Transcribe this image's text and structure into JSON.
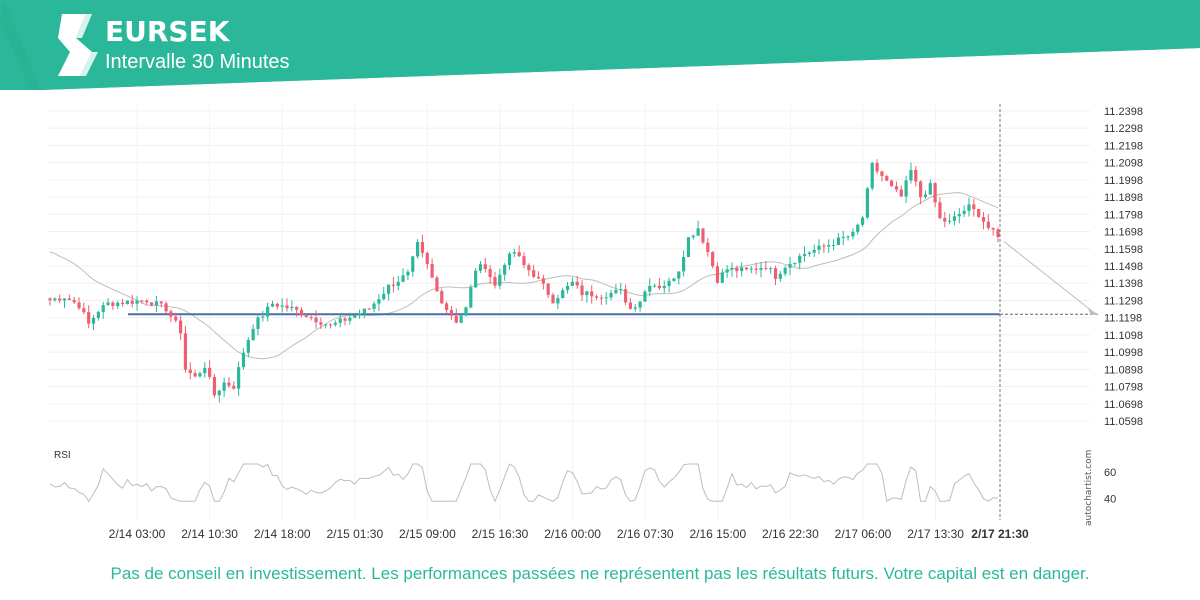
{
  "header": {
    "symbol": "EURSEK",
    "interval": "Intervalle 30 Minutes",
    "logo_icon": "autochartist-logo-icon"
  },
  "colors": {
    "brand": "#2bb89a",
    "bull": "#2bb89a",
    "bear": "#ef5f72",
    "support": "#4a6fa5",
    "ma": "#bdbdbd",
    "rsi": "#bdbdbd"
  },
  "branding": {
    "vertical_text": "autochartist.com"
  },
  "disclaimer": "Pas de conseil en investissement. Les performances passées ne représentent pas les résultats futurs. Votre capital est en danger.",
  "chart_data": {
    "type": "candlestick",
    "title": "EURSEK",
    "subtitle": "Intervalle 30 Minutes",
    "y_ticks": [
      "11.2398",
      "11.2298",
      "11.2198",
      "11.2098",
      "11.1998",
      "11.1898",
      "11.1798",
      "11.1698",
      "11.1598",
      "11.1498",
      "11.1398",
      "11.1298",
      "11.1198",
      "11.1098",
      "11.0998",
      "11.0898",
      "11.0798",
      "11.0698",
      "11.0598"
    ],
    "ylim": [
      11.0558,
      11.2438
    ],
    "x_ticks": [
      "2/14 03:00",
      "2/14 10:30",
      "2/14 18:00",
      "2/15 01:30",
      "2/15 09:00",
      "2/15 16:30",
      "2/16 00:00",
      "2/16 07:30",
      "2/16 15:00",
      "2/16 22:30",
      "2/17 06:00",
      "2/17 13:30"
    ],
    "x_current_label": "2/17 21:30",
    "support_level": 11.1218,
    "projection": {
      "from": 11.164,
      "to": 11.1218
    },
    "price_waypoints": [
      [
        0,
        11.13
      ],
      [
        3,
        11.132
      ],
      [
        6,
        11.127
      ],
      [
        8,
        11.116
      ],
      [
        10,
        11.124
      ],
      [
        12,
        11.128
      ],
      [
        16,
        11.129
      ],
      [
        20,
        11.13
      ],
      [
        24,
        11.125
      ],
      [
        27,
        11.112
      ],
      [
        28,
        11.09
      ],
      [
        30,
        11.085
      ],
      [
        32,
        11.092
      ],
      [
        34,
        11.075
      ],
      [
        36,
        11.082
      ],
      [
        38,
        11.08
      ],
      [
        40,
        11.1
      ],
      [
        42,
        11.115
      ],
      [
        46,
        11.128
      ],
      [
        50,
        11.125
      ],
      [
        54,
        11.12
      ],
      [
        58,
        11.115
      ],
      [
        62,
        11.12
      ],
      [
        66,
        11.125
      ],
      [
        70,
        11.138
      ],
      [
        74,
        11.145
      ],
      [
        76,
        11.162
      ],
      [
        78,
        11.15
      ],
      [
        80,
        11.135
      ],
      [
        82,
        11.125
      ],
      [
        84,
        11.118
      ],
      [
        86,
        11.125
      ],
      [
        88,
        11.148
      ],
      [
        90,
        11.15
      ],
      [
        92,
        11.138
      ],
      [
        94,
        11.152
      ],
      [
        96,
        11.158
      ],
      [
        98,
        11.15
      ],
      [
        100,
        11.145
      ],
      [
        102,
        11.138
      ],
      [
        104,
        11.13
      ],
      [
        106,
        11.135
      ],
      [
        108,
        11.14
      ],
      [
        110,
        11.134
      ],
      [
        114,
        11.133
      ],
      [
        118,
        11.135
      ],
      [
        120,
        11.125
      ],
      [
        122,
        11.13
      ],
      [
        124,
        11.14
      ],
      [
        126,
        11.138
      ],
      [
        128,
        11.14
      ],
      [
        130,
        11.148
      ],
      [
        132,
        11.166
      ],
      [
        134,
        11.172
      ],
      [
        136,
        11.158
      ],
      [
        138,
        11.142
      ],
      [
        140,
        11.148
      ],
      [
        144,
        11.147
      ],
      [
        148,
        11.15
      ],
      [
        150,
        11.144
      ],
      [
        152,
        11.15
      ],
      [
        156,
        11.157
      ],
      [
        160,
        11.161
      ],
      [
        164,
        11.166
      ],
      [
        166,
        11.168
      ],
      [
        168,
        11.178
      ],
      [
        170,
        11.208
      ],
      [
        172,
        11.202
      ],
      [
        174,
        11.195
      ],
      [
        176,
        11.19
      ],
      [
        178,
        11.205
      ],
      [
        180,
        11.19
      ],
      [
        182,
        11.196
      ],
      [
        184,
        11.177
      ],
      [
        186,
        11.175
      ],
      [
        188,
        11.18
      ],
      [
        190,
        11.184
      ],
      [
        192,
        11.18
      ],
      [
        194,
        11.172
      ],
      [
        196,
        11.166
      ]
    ],
    "rsi": {
      "label": "RSI",
      "ticks": [
        40,
        60
      ],
      "ylim": [
        30,
        75
      ]
    }
  }
}
